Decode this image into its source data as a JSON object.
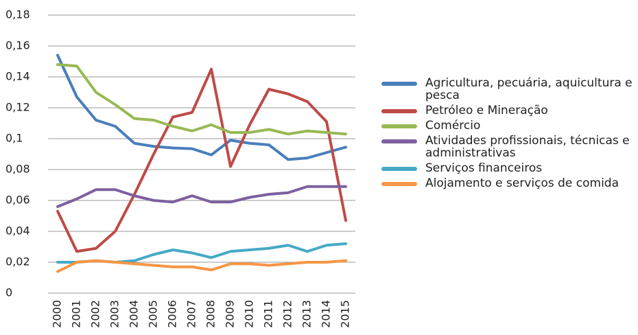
{
  "chart_data": {
    "type": "line",
    "categories": [
      "2000",
      "2001",
      "2002",
      "2003",
      "2004",
      "2005",
      "2006",
      "2007",
      "2008",
      "2009",
      "2010",
      "2011",
      "2012",
      "2013",
      "2014",
      "2015"
    ],
    "series": [
      {
        "name": "Agricultura, pecuária, aquicultura e pesca",
        "color": "#4a7ebb",
        "values": [
          0.154,
          0.127,
          0.112,
          0.108,
          0.097,
          0.095,
          0.094,
          0.0935,
          0.0895,
          0.099,
          0.097,
          0.096,
          0.0865,
          0.0875,
          0.091,
          0.0945
        ]
      },
      {
        "name": "Petróleo e Mineração",
        "color": "#be4b48",
        "values": [
          0.053,
          0.027,
          0.029,
          0.04,
          0.064,
          0.09,
          0.114,
          0.117,
          0.145,
          0.082,
          0.109,
          0.132,
          0.129,
          0.124,
          0.111,
          0.047
        ]
      },
      {
        "name": "Comércio",
        "color": "#98b954",
        "values": [
          0.148,
          0.147,
          0.13,
          0.122,
          0.113,
          0.112,
          0.108,
          0.105,
          0.109,
          0.104,
          0.104,
          0.106,
          0.103,
          0.105,
          0.104,
          0.103
        ]
      },
      {
        "name": "Atividades profissionais, técnicas e administrativas",
        "color": "#7d60a0",
        "values": [
          0.056,
          0.061,
          0.067,
          0.067,
          0.063,
          0.06,
          0.059,
          0.063,
          0.059,
          0.059,
          0.062,
          0.064,
          0.065,
          0.069,
          0.069,
          0.069
        ]
      },
      {
        "name": "Serviços financeiros",
        "color": "#46aac5",
        "values": [
          0.02,
          0.02,
          0.021,
          0.02,
          0.021,
          0.025,
          0.028,
          0.026,
          0.023,
          0.027,
          0.028,
          0.029,
          0.031,
          0.027,
          0.031,
          0.032
        ]
      },
      {
        "name": "Alojamento e serviços de comida",
        "color": "#f79646",
        "values": [
          0.014,
          0.02,
          0.021,
          0.02,
          0.019,
          0.018,
          0.017,
          0.017,
          0.015,
          0.019,
          0.019,
          0.018,
          0.019,
          0.02,
          0.02,
          0.021
        ]
      }
    ],
    "ylim": [
      0,
      0.18
    ],
    "yticks": [
      0,
      {
        "value": 0.02,
        "label": "0,02"
      },
      {
        "value": 0.04,
        "label": "0,04"
      },
      {
        "value": 0.06,
        "label": "0,06"
      },
      {
        "value": 0.08,
        "label": "0,08"
      },
      {
        "value": 0.1,
        "label": "0,1"
      },
      {
        "value": 0.12,
        "label": "0,12"
      },
      {
        "value": 0.14,
        "label": "0,14"
      },
      {
        "value": 0.16,
        "label": "0,16"
      },
      {
        "value": 0.18,
        "label": "0,18"
      }
    ],
    "grid": true,
    "legend": "right"
  }
}
